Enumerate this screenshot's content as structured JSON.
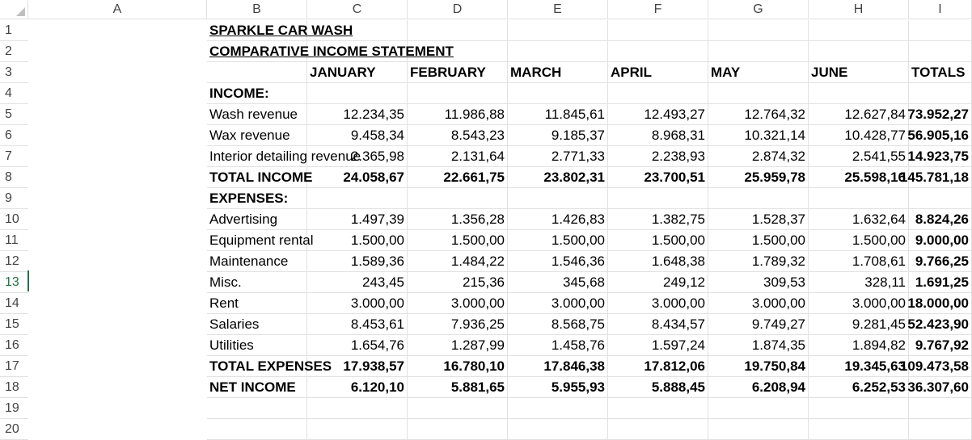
{
  "columns": [
    "A",
    "B",
    "C",
    "D",
    "E",
    "F",
    "G",
    "H",
    "I"
  ],
  "rows": [
    "1",
    "2",
    "3",
    "4",
    "5",
    "6",
    "7",
    "8",
    "9",
    "10",
    "11",
    "12",
    "13",
    "14",
    "15",
    "16",
    "17",
    "18",
    "19",
    "20"
  ],
  "title": "SPARKLE CAR WASH",
  "subtitle": "COMPARATIVE INCOME STATEMENT",
  "month_headers": [
    "JANUARY",
    "FEBRUARY",
    "MARCH",
    "APRIL",
    "MAY",
    "JUNE",
    "TOTALS"
  ],
  "section_income": "INCOME:",
  "section_expenses": "EXPENSES:",
  "income_rows": [
    {
      "label": "Wash revenue",
      "values": [
        "12.234,35",
        "11.986,88",
        "11.845,61",
        "12.493,27",
        "12.764,32",
        "12.627,84"
      ],
      "total": "73.952,27"
    },
    {
      "label": "Wax revenue",
      "values": [
        "9.458,34",
        "8.543,23",
        "9.185,37",
        "8.968,31",
        "10.321,14",
        "10.428,77"
      ],
      "total": "56.905,16"
    },
    {
      "label": "Interior detailing revenue",
      "values": [
        "2.365,98",
        "2.131,64",
        "2.771,33",
        "2.238,93",
        "2.874,32",
        "2.541,55"
      ],
      "total": "14.923,75"
    }
  ],
  "total_income": {
    "label": "TOTAL INCOME",
    "values": [
      "24.058,67",
      "22.661,75",
      "23.802,31",
      "23.700,51",
      "25.959,78",
      "25.598,16"
    ],
    "total": "145.781,18"
  },
  "expense_rows": [
    {
      "label": "Advertising",
      "values": [
        "1.497,39",
        "1.356,28",
        "1.426,83",
        "1.382,75",
        "1.528,37",
        "1.632,64"
      ],
      "total": "8.824,26"
    },
    {
      "label": "Equipment rental",
      "values": [
        "1.500,00",
        "1.500,00",
        "1.500,00",
        "1.500,00",
        "1.500,00",
        "1.500,00"
      ],
      "total": "9.000,00"
    },
    {
      "label": "Maintenance",
      "values": [
        "1.589,36",
        "1.484,22",
        "1.546,36",
        "1.648,38",
        "1.789,32",
        "1.708,61"
      ],
      "total": "9.766,25"
    },
    {
      "label": "Misc.",
      "values": [
        "243,45",
        "215,36",
        "345,68",
        "249,12",
        "309,53",
        "328,11"
      ],
      "total": "1.691,25"
    },
    {
      "label": "Rent",
      "values": [
        "3.000,00",
        "3.000,00",
        "3.000,00",
        "3.000,00",
        "3.000,00",
        "3.000,00"
      ],
      "total": "18.000,00"
    },
    {
      "label": "Salaries",
      "values": [
        "8.453,61",
        "7.936,25",
        "8.568,75",
        "8.434,57",
        "9.749,27",
        "9.281,45"
      ],
      "total": "52.423,90"
    },
    {
      "label": "Utilities",
      "values": [
        "1.654,76",
        "1.287,99",
        "1.458,76",
        "1.597,24",
        "1.874,35",
        "1.894,82"
      ],
      "total": "9.767,92"
    }
  ],
  "total_expenses": {
    "label": "TOTAL EXPENSES",
    "values": [
      "17.938,57",
      "16.780,10",
      "17.846,38",
      "17.812,06",
      "19.750,84",
      "19.345,63"
    ],
    "total": "109.473,58"
  },
  "net_income": {
    "label": "NET INCOME",
    "values": [
      "6.120,10",
      "5.881,65",
      "5.955,93",
      "5.888,45",
      "6.208,94",
      "6.252,53"
    ],
    "total": "36.307,60"
  },
  "selected_row": "13"
}
